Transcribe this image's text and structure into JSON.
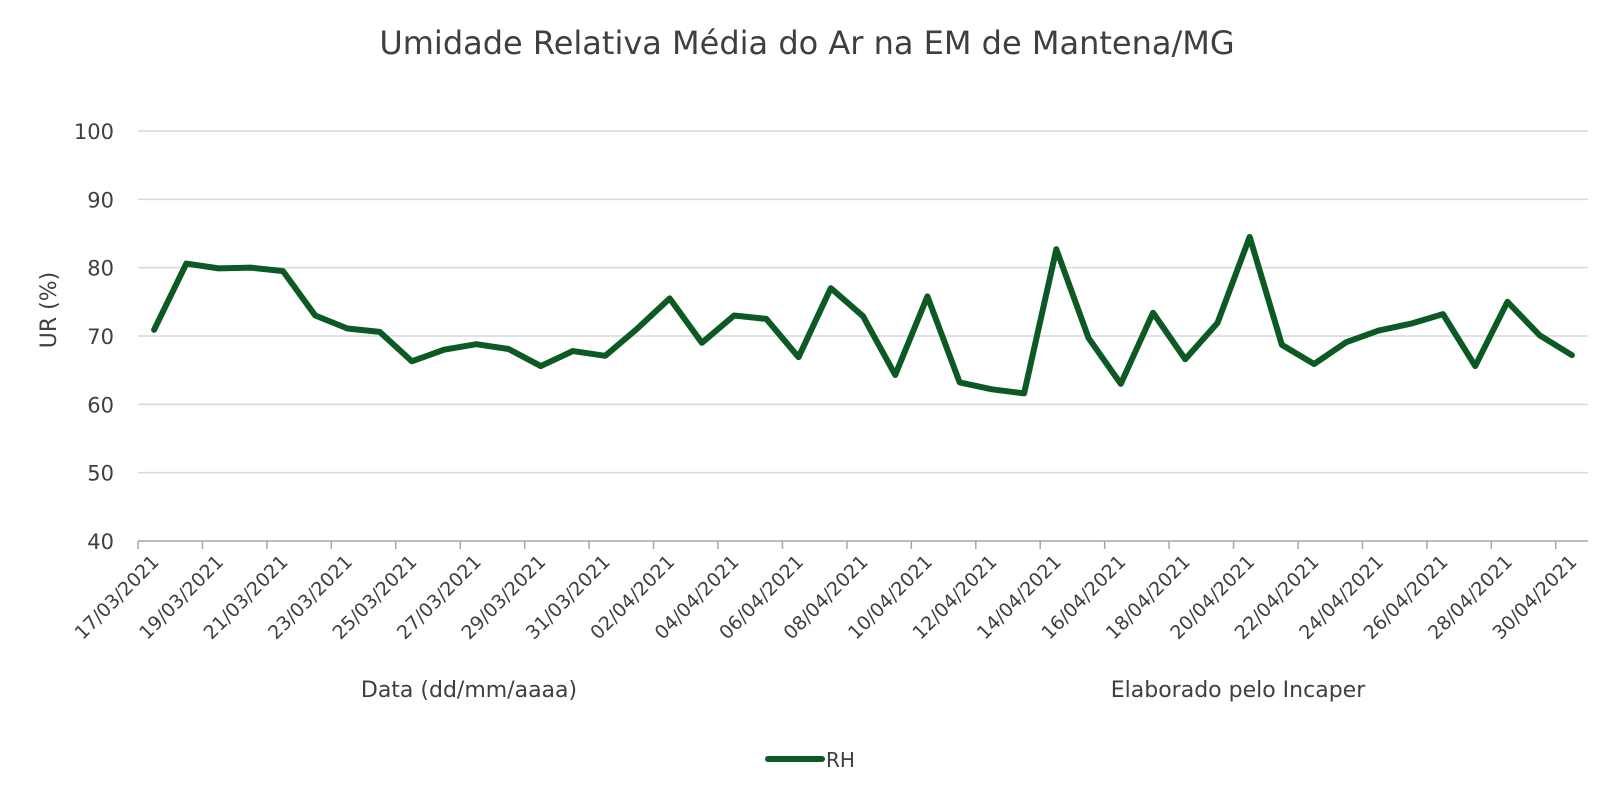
{
  "chart_data": {
    "type": "line",
    "title": "Umidade Relativa Média do Ar na EM de Mantena/MG",
    "xlabel": "Data (dd/mm/aaaa)",
    "ylabel": "UR (%)",
    "note": "Elaborado pelo Incaper",
    "ylim": [
      40,
      100
    ],
    "yticks": [
      "40",
      "50",
      "60",
      "70",
      "80",
      "90",
      "100"
    ],
    "grid": true,
    "legend_position": "bottom",
    "series_color": "#0b5a23",
    "x": [
      "17/03/2021",
      "18/03/2021",
      "19/03/2021",
      "20/03/2021",
      "21/03/2021",
      "22/03/2021",
      "23/03/2021",
      "24/03/2021",
      "25/03/2021",
      "26/03/2021",
      "27/03/2021",
      "28/03/2021",
      "29/03/2021",
      "30/03/2021",
      "31/03/2021",
      "01/04/2021",
      "02/04/2021",
      "03/04/2021",
      "04/04/2021",
      "05/04/2021",
      "06/04/2021",
      "07/04/2021",
      "08/04/2021",
      "09/04/2021",
      "10/04/2021",
      "11/04/2021",
      "12/04/2021",
      "13/04/2021",
      "14/04/2021",
      "15/04/2021",
      "16/04/2021",
      "17/04/2021",
      "18/04/2021",
      "19/04/2021",
      "20/04/2021",
      "21/04/2021",
      "22/04/2021",
      "23/04/2021",
      "24/04/2021",
      "25/04/2021",
      "26/04/2021",
      "27/04/2021",
      "28/04/2021",
      "29/04/2021",
      "30/04/2021"
    ],
    "xtick_labels": [
      "17/03/2021",
      "19/03/2021",
      "21/03/2021",
      "23/03/2021",
      "25/03/2021",
      "27/03/2021",
      "29/03/2021",
      "31/03/2021",
      "02/04/2021",
      "04/04/2021",
      "06/04/2021",
      "08/04/2021",
      "10/04/2021",
      "12/04/2021",
      "14/04/2021",
      "16/04/2021",
      "18/04/2021",
      "20/04/2021",
      "22/04/2021",
      "24/04/2021",
      "26/04/2021",
      "28/04/2021",
      "30/04/2021"
    ],
    "series": [
      {
        "name": "RH",
        "values": [
          70.9,
          80.6,
          79.9,
          80.0,
          79.5,
          73.0,
          71.1,
          70.6,
          66.3,
          68.0,
          68.8,
          68.1,
          65.6,
          67.8,
          67.1,
          71.1,
          75.5,
          69.0,
          73.0,
          72.5,
          66.9,
          77.0,
          72.9,
          64.3,
          75.8,
          63.2,
          62.2,
          61.6,
          82.7,
          69.7,
          63.0,
          73.4,
          66.6,
          71.9,
          84.5,
          68.7,
          65.9,
          69.1,
          70.8,
          71.8,
          73.2,
          65.6,
          75.0,
          70.1,
          67.2
        ]
      }
    ]
  }
}
